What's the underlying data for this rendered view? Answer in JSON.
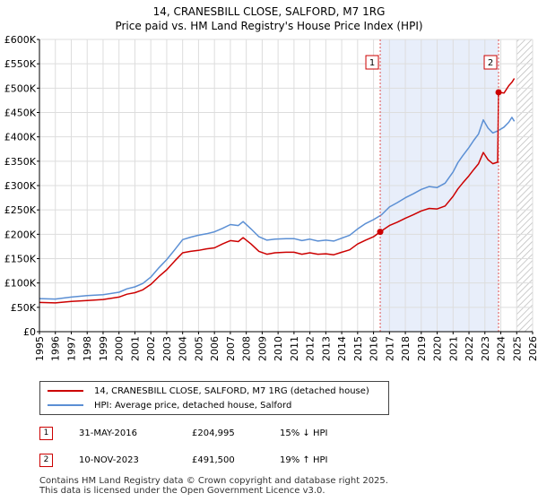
{
  "chart_data": {
    "type": "line",
    "title": "14, CRANESBILL CLOSE, SALFORD, M7 1RG",
    "subtitle": "Price paid vs. HM Land Registry's House Price Index (HPI)",
    "xlabel": "",
    "ylabel": "",
    "xlim": [
      1995,
      2026
    ],
    "ylim": [
      0,
      600000
    ],
    "yticks": [
      0,
      50000,
      100000,
      150000,
      200000,
      250000,
      300000,
      350000,
      400000,
      450000,
      500000,
      550000,
      600000
    ],
    "ytick_labels": [
      "£0",
      "£50K",
      "£100K",
      "£150K",
      "£200K",
      "£250K",
      "£300K",
      "£350K",
      "£400K",
      "£450K",
      "£500K",
      "£550K",
      "£600K"
    ],
    "xticks": [
      1995,
      1996,
      1997,
      1998,
      1999,
      2000,
      2001,
      2002,
      2003,
      2004,
      2005,
      2006,
      2007,
      2008,
      2009,
      2010,
      2011,
      2012,
      2013,
      2014,
      2015,
      2016,
      2017,
      2018,
      2019,
      2020,
      2021,
      2022,
      2023,
      2024,
      2025,
      2026
    ],
    "grid": true,
    "shaded_region": {
      "from": 2016.42,
      "to": 2023.86
    },
    "hatched_region": {
      "from": 2025.0,
      "to": 2026.0
    },
    "series": [
      {
        "name": "14, CRANESBILL CLOSE, SALFORD, M7 1RG (detached house)",
        "color": "#cc0000",
        "x": [
          1995.0,
          1996.0,
          1997.0,
          1998.0,
          1999.0,
          2000.0,
          2000.5,
          2001.0,
          2001.5,
          2002.0,
          2002.5,
          2003.0,
          2003.5,
          2004.0,
          2004.5,
          2005.0,
          2005.5,
          2006.0,
          2006.5,
          2007.0,
          2007.5,
          2007.8,
          2008.3,
          2008.8,
          2009.3,
          2009.8,
          2010.5,
          2011.0,
          2011.5,
          2012.0,
          2012.5,
          2013.0,
          2013.5,
          2014.0,
          2014.5,
          2015.0,
          2015.5,
          2016.0,
          2016.42,
          2017.0,
          2017.5,
          2018.0,
          2018.5,
          2019.0,
          2019.5,
          2020.0,
          2020.5,
          2021.0,
          2021.3,
          2021.6,
          2022.0,
          2022.3,
          2022.6,
          2022.9,
          2023.2,
          2023.5,
          2023.8,
          2023.86,
          2024.2,
          2024.5,
          2024.7,
          2024.85
        ],
        "values": [
          60000,
          59000,
          62000,
          64000,
          66000,
          71000,
          77000,
          80000,
          86000,
          97000,
          113000,
          127000,
          145000,
          162000,
          165000,
          167000,
          170000,
          172000,
          180000,
          187000,
          185000,
          193000,
          180000,
          165000,
          159000,
          162000,
          163000,
          163000,
          159000,
          162000,
          159000,
          160000,
          158000,
          163000,
          168000,
          180000,
          188000,
          195000,
          204995,
          218000,
          225000,
          233000,
          240000,
          248000,
          253000,
          252000,
          258000,
          278000,
          293000,
          305000,
          320000,
          333000,
          345000,
          368000,
          353000,
          345000,
          348000,
          491500,
          490000,
          505000,
          512000,
          520000
        ]
      },
      {
        "name": "HPI: Average price, detached house, Salford",
        "color": "#5b8fd4",
        "x": [
          1995.0,
          1996.0,
          1997.0,
          1998.0,
          1999.0,
          2000.0,
          2000.5,
          2001.0,
          2001.5,
          2002.0,
          2002.5,
          2003.0,
          2003.5,
          2004.0,
          2004.5,
          2005.0,
          2005.5,
          2006.0,
          2006.5,
          2007.0,
          2007.5,
          2007.8,
          2008.3,
          2008.8,
          2009.3,
          2009.8,
          2010.5,
          2011.0,
          2011.5,
          2012.0,
          2012.5,
          2013.0,
          2013.5,
          2014.0,
          2014.5,
          2015.0,
          2015.5,
          2016.0,
          2016.5,
          2017.0,
          2017.5,
          2018.0,
          2018.5,
          2019.0,
          2019.5,
          2020.0,
          2020.5,
          2021.0,
          2021.3,
          2021.6,
          2022.0,
          2022.3,
          2022.6,
          2022.9,
          2023.2,
          2023.5,
          2023.8,
          2024.2,
          2024.5,
          2024.7,
          2024.85
        ],
        "values": [
          68000,
          67000,
          71000,
          74000,
          76000,
          81000,
          88000,
          92000,
          99000,
          112000,
          131000,
          148000,
          168000,
          189000,
          194000,
          198000,
          201000,
          205000,
          212000,
          220000,
          218000,
          226000,
          211000,
          195000,
          188000,
          190000,
          191000,
          191000,
          187000,
          190000,
          186000,
          188000,
          186000,
          192000,
          198000,
          211000,
          222000,
          230000,
          240000,
          256000,
          265000,
          275000,
          283000,
          292000,
          298000,
          296000,
          305000,
          328000,
          347000,
          361000,
          378000,
          393000,
          406000,
          435000,
          418000,
          408000,
          412000,
          420000,
          430000,
          440000,
          432000
        ]
      }
    ],
    "sales": [
      {
        "marker": "1",
        "date": "31-MAY-2016",
        "price": "£204,995",
        "hpi": "15% ↓ HPI",
        "x": 2016.42,
        "y": 204995
      },
      {
        "marker": "2",
        "date": "10-NOV-2023",
        "price": "£491,500",
        "hpi": "19% ↑ HPI",
        "x": 2023.86,
        "y": 491500
      }
    ]
  },
  "legend": {
    "red_label": "14, CRANESBILL CLOSE, SALFORD, M7 1RG (detached house)",
    "blue_label": "HPI: Average price, detached house, Salford"
  },
  "footer": {
    "line1": "Contains HM Land Registry data © Crown copyright and database right 2025.",
    "line2": "This data is licensed under the Open Government Licence v3.0."
  }
}
